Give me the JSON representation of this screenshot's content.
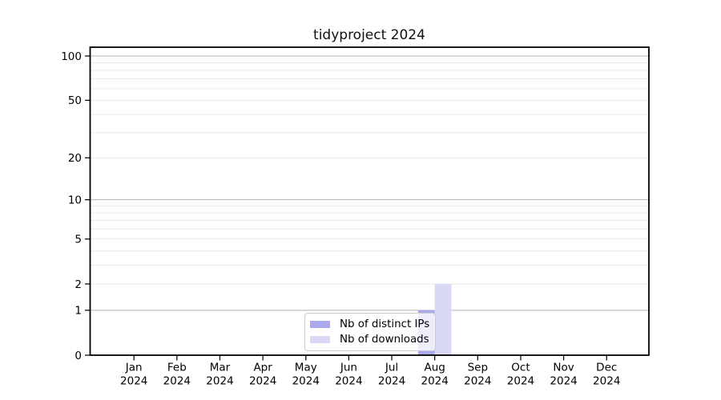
{
  "title": "tidyproject 2024",
  "chart_data": {
    "type": "bar",
    "title": "tidyproject 2024",
    "categories": [
      "Jan 2024",
      "Feb 2024",
      "Mar 2024",
      "Apr 2024",
      "May 2024",
      "Jun 2024",
      "Jul 2024",
      "Aug 2024",
      "Sep 2024",
      "Oct 2024",
      "Nov 2024",
      "Dec 2024"
    ],
    "series": [
      {
        "name": "Nb of distinct IPs",
        "color": "#a9a9ec",
        "values": [
          0,
          0,
          0,
          0,
          0,
          0,
          0,
          1,
          0,
          0,
          0,
          0
        ]
      },
      {
        "name": "Nb of downloads",
        "color": "#d9d9f6",
        "values": [
          0,
          0,
          0,
          0,
          0,
          0,
          0,
          2,
          0,
          0,
          0,
          0
        ]
      }
    ],
    "xlabel": "",
    "ylabel": "",
    "y_scale": "log1p",
    "ylim": [
      0,
      116
    ],
    "y_tick_values": [
      0,
      1,
      2,
      5,
      10,
      20,
      50,
      100
    ],
    "y_major_grid": [
      1,
      10,
      100
    ],
    "y_minor_grid": [
      2,
      3,
      4,
      5,
      6,
      7,
      8,
      9,
      20,
      30,
      40,
      50,
      60,
      70,
      80,
      90
    ],
    "grid": true,
    "legend_position": "lower center",
    "colors": {
      "axis": "#000000",
      "major_grid": "#b3b3b3",
      "minor_grid": "#e9e9e9",
      "background": "#ffffff",
      "tick_label": "#000000"
    }
  }
}
